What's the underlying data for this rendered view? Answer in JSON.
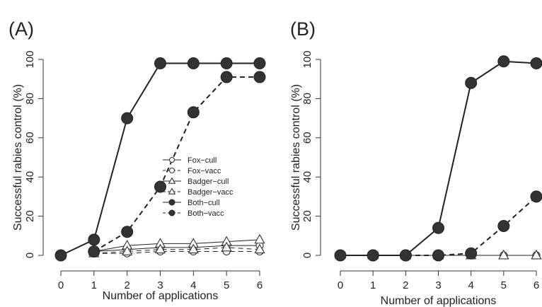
{
  "chart_data": [
    {
      "panel_label": "(A)",
      "type": "line",
      "xlabel": "Number of applications",
      "ylabel": "Successful rabies control (%)",
      "xlim": [
        0,
        6
      ],
      "ylim": [
        0,
        100
      ],
      "xticks": [
        "0",
        "1",
        "2",
        "3",
        "4",
        "5",
        "6"
      ],
      "yticks": [
        "0",
        "20",
        "40",
        "60",
        "80",
        "100"
      ],
      "legend_position": "center-right",
      "series": [
        {
          "name": "Fox−cull",
          "marker": "circle-open",
          "line": "solid",
          "x": [
            1,
            2,
            3,
            4,
            5,
            6
          ],
          "y": [
            2,
            3,
            4,
            4,
            5,
            5
          ]
        },
        {
          "name": "Fox−vacc",
          "marker": "circle-open",
          "line": "dashed",
          "x": [
            1,
            2,
            3,
            4,
            5,
            6
          ],
          "y": [
            1,
            1,
            2,
            2,
            2,
            2
          ]
        },
        {
          "name": "Badger−cull",
          "marker": "triangle-open",
          "line": "solid",
          "x": [
            1,
            2,
            3,
            4,
            5,
            6
          ],
          "y": [
            2,
            5,
            6,
            6,
            7,
            8
          ]
        },
        {
          "name": "Badger−vacc",
          "marker": "triangle-open",
          "line": "dashed",
          "x": [
            1,
            2,
            3,
            4,
            5,
            6
          ],
          "y": [
            1,
            2,
            3,
            3,
            4,
            3
          ]
        },
        {
          "name": "Both−cull",
          "marker": "circle-filled",
          "line": "solid",
          "x": [
            0,
            1,
            2,
            3,
            4,
            5,
            6
          ],
          "y": [
            0,
            8,
            70,
            98,
            98,
            98,
            98
          ]
        },
        {
          "name": "Both−vacc",
          "marker": "circle-filled",
          "line": "dashed",
          "x": [
            1,
            2,
            3,
            4,
            5,
            6
          ],
          "y": [
            2,
            12,
            35,
            73,
            91,
            91
          ]
        }
      ]
    },
    {
      "panel_label": "(B)",
      "type": "line",
      "xlabel": "Number of applications",
      "ylabel": "Successful rabies control (%)",
      "xlim": [
        0,
        6
      ],
      "ylim": [
        0,
        100
      ],
      "xticks": [
        "0",
        "1",
        "2",
        "3",
        "4",
        "5",
        "6"
      ],
      "yticks": [
        "0",
        "20",
        "40",
        "60",
        "80",
        "100"
      ],
      "series": [
        {
          "name": "Fox−cull",
          "marker": "circle-open",
          "line": "solid",
          "x": [
            1,
            2,
            3,
            4,
            5,
            6
          ],
          "y": [
            0,
            0,
            0,
            0,
            0,
            0
          ]
        },
        {
          "name": "Fox−vacc",
          "marker": "circle-open",
          "line": "dashed",
          "x": [
            1,
            2,
            3,
            4,
            5,
            6
          ],
          "y": [
            0,
            0,
            0,
            0,
            0,
            0
          ]
        },
        {
          "name": "Badger−cull",
          "marker": "triangle-open",
          "line": "solid",
          "x": [
            1,
            2,
            3,
            4,
            5,
            6
          ],
          "y": [
            0,
            0,
            0,
            0,
            0,
            0
          ]
        },
        {
          "name": "Badger−vacc",
          "marker": "triangle-open",
          "line": "dashed",
          "x": [
            1,
            2,
            3,
            4,
            5,
            6
          ],
          "y": [
            0,
            0,
            0,
            0,
            0,
            0
          ]
        },
        {
          "name": "Both−cull",
          "marker": "circle-filled",
          "line": "solid",
          "x": [
            0,
            1,
            2,
            3,
            4,
            5,
            6
          ],
          "y": [
            0,
            0,
            0,
            14,
            88,
            99,
            98
          ]
        },
        {
          "name": "Both−vacc",
          "marker": "circle-filled",
          "line": "dashed",
          "x": [
            1,
            2,
            3,
            4,
            5,
            6
          ],
          "y": [
            0,
            0,
            0,
            1,
            15,
            30
          ]
        }
      ]
    }
  ]
}
